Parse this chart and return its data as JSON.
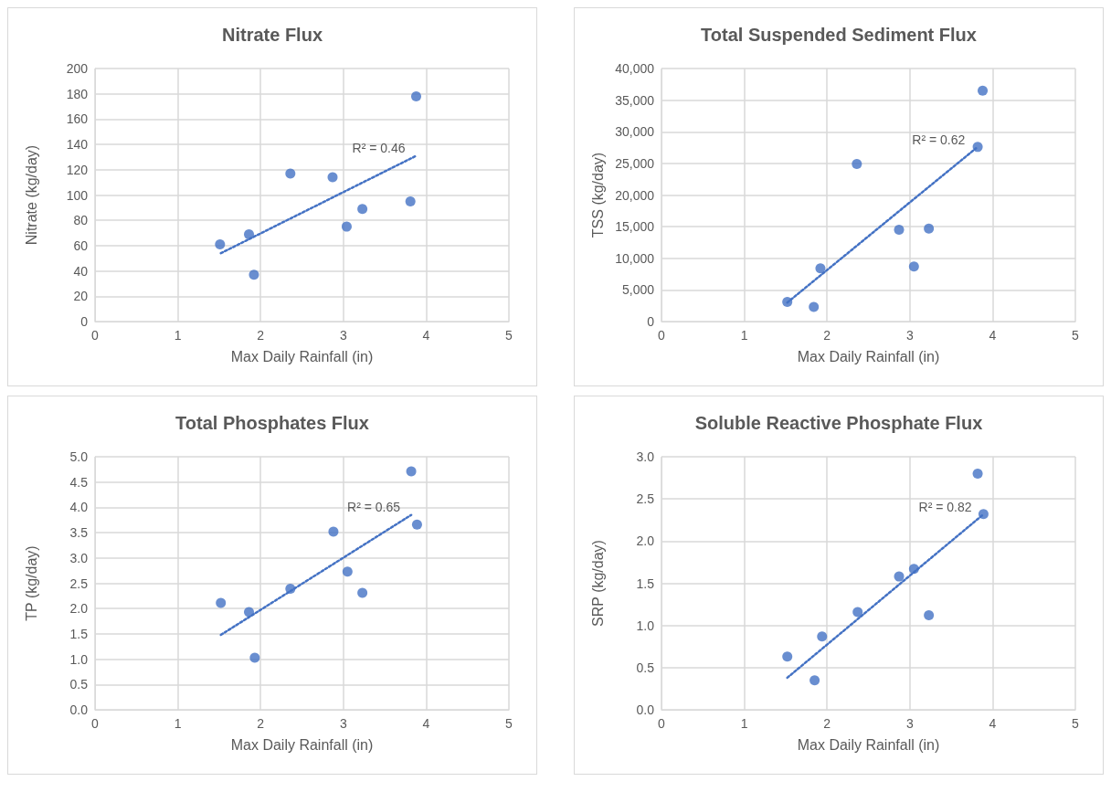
{
  "chart_data": [
    {
      "type": "scatter",
      "title": "Nitrate Flux",
      "xlabel": "Max Daily Rainfall (in)",
      "ylabel": "Nitrate (kg/day)",
      "xlim": [
        0,
        5
      ],
      "xticks": [
        0,
        1,
        2,
        3,
        4,
        5
      ],
      "ylim": [
        0,
        200
      ],
      "yticks": [
        0,
        20,
        40,
        60,
        80,
        100,
        120,
        140,
        160,
        180,
        200
      ],
      "grid": true,
      "marker": "circle",
      "series": [
        {
          "color": "#4472c4",
          "x": [
            1.51,
            1.86,
            1.92,
            2.36,
            2.87,
            3.04,
            3.23,
            3.81,
            3.88
          ],
          "values": [
            61,
            69,
            37,
            117,
            114,
            75,
            89,
            95,
            178
          ]
        },
        {
          "type": "line",
          "line_style": "dotted",
          "marker": "none",
          "color": "#4472c4",
          "x": [
            1.52,
            3.88
          ],
          "values": [
            54,
            131
          ]
        }
      ],
      "annotations": [
        "R² = 0.46"
      ]
    },
    {
      "type": "scatter",
      "title": "Total Suspended Sediment Flux",
      "xlabel": "Max Daily Rainfall (in)",
      "ylabel": "TSS (kg/day)",
      "xlim": [
        0,
        5
      ],
      "xticks": [
        0,
        1,
        2,
        3,
        4,
        5
      ],
      "ylim": [
        0,
        40000
      ],
      "yticks": [
        0,
        {
          "value": 5000,
          "label": "5,000"
        },
        {
          "value": 10000,
          "label": "10,000"
        },
        {
          "value": 15000,
          "label": "15,000"
        },
        {
          "value": 20000,
          "label": "20,000"
        },
        {
          "value": 25000,
          "label": "25,000"
        },
        {
          "value": 30000,
          "label": "30,000"
        },
        {
          "value": 35000,
          "label": "35,000"
        },
        {
          "value": 40000,
          "label": "40,000"
        }
      ],
      "grid": true,
      "marker": "circle",
      "series": [
        {
          "color": "#4472c4",
          "x": [
            1.52,
            1.84,
            1.92,
            2.36,
            2.87,
            3.05,
            3.23,
            3.82,
            3.88
          ],
          "values": [
            3100,
            2300,
            8400,
            24900,
            14500,
            8700,
            14700,
            27600,
            36500
          ]
        },
        {
          "type": "line",
          "line_style": "dotted",
          "marker": "none",
          "color": "#4472c4",
          "x": [
            1.52,
            3.8
          ],
          "values": [
            3000,
            27400
          ]
        }
      ],
      "annotations": [
        "R² = 0.62"
      ]
    },
    {
      "type": "scatter",
      "title": "Total Phosphates Flux",
      "xlabel": "Max Daily Rainfall (in)",
      "ylabel": "TP (kg/day)",
      "xlim": [
        0,
        5
      ],
      "xticks": [
        0,
        1,
        2,
        3,
        4,
        5
      ],
      "ylim": [
        0,
        5
      ],
      "yticks": [
        {
          "value": 0,
          "label": "0.0"
        },
        {
          "value": 0.5,
          "label": "0.5"
        },
        {
          "value": 1,
          "label": "1.0"
        },
        {
          "value": 1.5,
          "label": "1.5"
        },
        {
          "value": 2,
          "label": "2.0"
        },
        {
          "value": 2.5,
          "label": "2.5"
        },
        {
          "value": 3,
          "label": "3.0"
        },
        {
          "value": 3.5,
          "label": "3.5"
        },
        {
          "value": 4,
          "label": "4.0"
        },
        {
          "value": 4.5,
          "label": "4.5"
        },
        {
          "value": 5,
          "label": "5.0"
        }
      ],
      "grid": true,
      "marker": "circle",
      "series": [
        {
          "color": "#4472c4",
          "x": [
            1.52,
            1.86,
            1.93,
            2.36,
            2.88,
            3.05,
            3.23,
            3.82,
            3.89
          ],
          "values": [
            2.11,
            1.93,
            1.03,
            2.39,
            3.52,
            2.73,
            2.31,
            4.71,
            3.66
          ]
        },
        {
          "type": "line",
          "line_style": "dotted",
          "marker": "none",
          "color": "#4472c4",
          "x": [
            1.52,
            3.82
          ],
          "values": [
            1.48,
            3.85
          ]
        }
      ],
      "annotations": [
        "R² = 0.65"
      ]
    },
    {
      "type": "scatter",
      "title": "Soluble Reactive Phosphate Flux",
      "xlabel": "Max Daily Rainfall (in)",
      "ylabel": "SRP (kg/day)",
      "xlim": [
        0,
        5
      ],
      "xticks": [
        0,
        1,
        2,
        3,
        4,
        5
      ],
      "ylim": [
        0,
        3
      ],
      "yticks": [
        {
          "value": 0,
          "label": "0.0"
        },
        {
          "value": 0.5,
          "label": "0.5"
        },
        {
          "value": 1,
          "label": "1.0"
        },
        {
          "value": 1.5,
          "label": "1.5"
        },
        {
          "value": 2,
          "label": "2.0"
        },
        {
          "value": 2.5,
          "label": "2.5"
        },
        {
          "value": 3,
          "label": "3.0"
        }
      ],
      "grid": true,
      "marker": "circle",
      "series": [
        {
          "color": "#4472c4",
          "x": [
            1.52,
            1.85,
            1.94,
            2.37,
            2.87,
            3.05,
            3.23,
            3.82,
            3.89
          ],
          "values": [
            0.63,
            0.35,
            0.87,
            1.16,
            1.58,
            1.67,
            1.12,
            2.8,
            2.32
          ]
        },
        {
          "type": "line",
          "line_style": "dotted",
          "marker": "none",
          "color": "#4472c4",
          "x": [
            1.52,
            3.88
          ],
          "values": [
            0.38,
            2.31
          ]
        }
      ],
      "annotations": [
        "R² = 0.82"
      ]
    }
  ]
}
